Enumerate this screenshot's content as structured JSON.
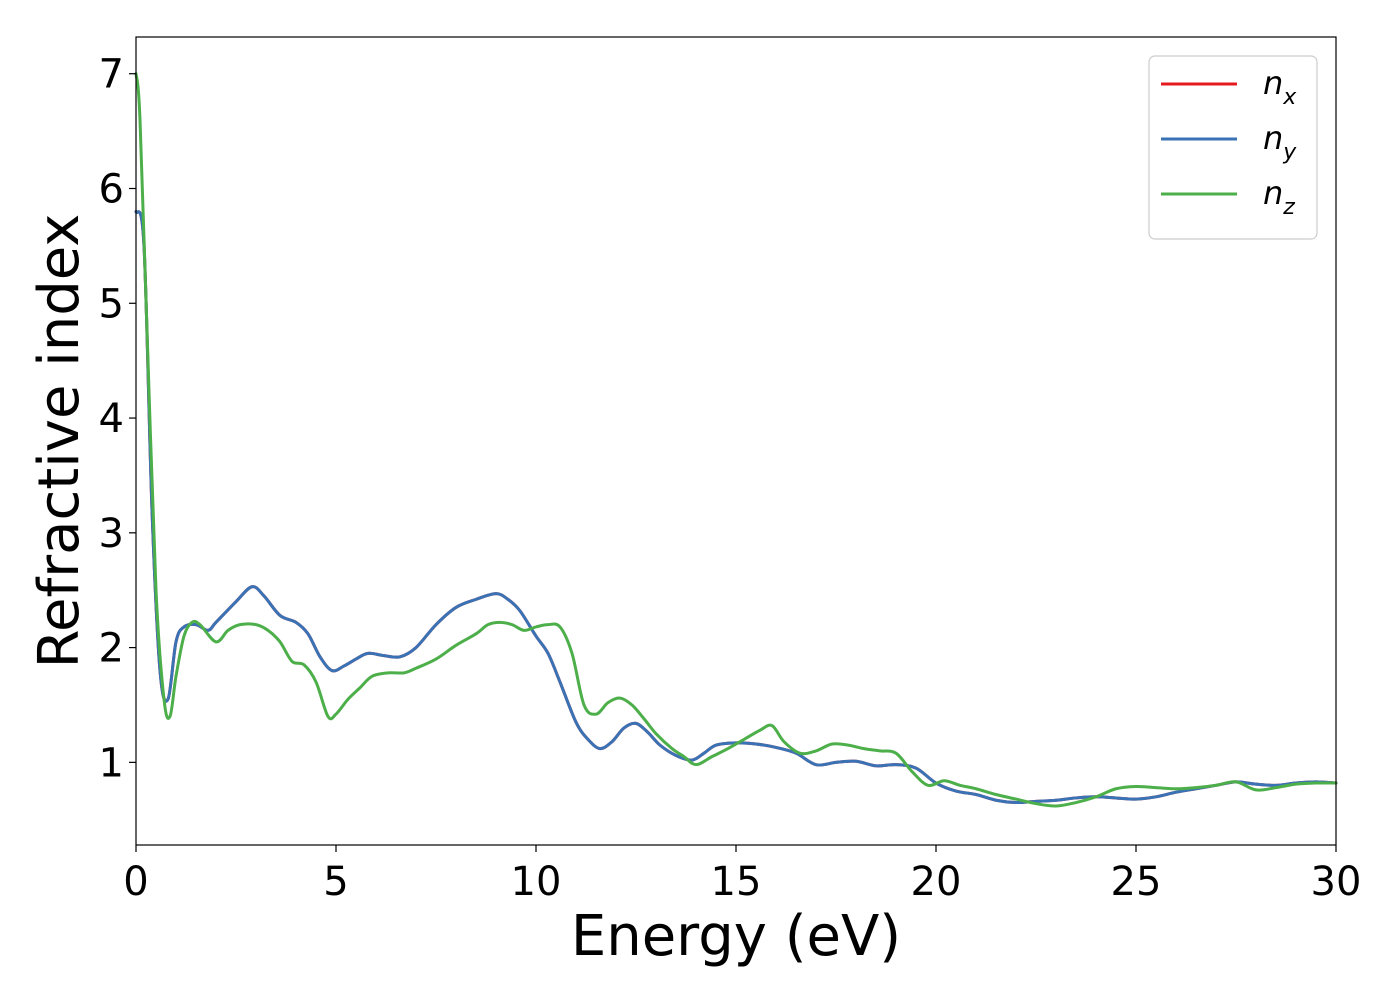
{
  "chart_data": {
    "type": "line",
    "title": "",
    "xlabel": "Energy (eV)",
    "ylabel": "Refractive index",
    "xlim": [
      0,
      30
    ],
    "ylim": [
      0.28,
      7.32
    ],
    "xticks": [
      0,
      5,
      10,
      15,
      20,
      25,
      30
    ],
    "xtick_labels": [
      "0",
      "5",
      "10",
      "15",
      "20",
      "25",
      "30"
    ],
    "yticks": [
      1,
      2,
      3,
      4,
      5,
      6,
      7
    ],
    "ytick_labels": [
      "1",
      "2",
      "3",
      "4",
      "5",
      "6",
      "7"
    ],
    "grid": false,
    "legend_position": "top-right",
    "series": [
      {
        "name": "n_x",
        "label_base": "n",
        "label_sub": "x",
        "color": "#e41a1c",
        "x": [
          0,
          0.2,
          0.4,
          0.6,
          0.8,
          1.0,
          1.2,
          1.5,
          1.8,
          2.0,
          2.5,
          2.9,
          3.2,
          3.6,
          4.0,
          4.3,
          4.6,
          4.9,
          5.2,
          5.5,
          5.8,
          6.2,
          6.6,
          7.0,
          7.5,
          8.0,
          8.5,
          9.0,
          9.3,
          9.6,
          10.0,
          10.3,
          10.6,
          11.0,
          11.3,
          11.6,
          11.9,
          12.2,
          12.5,
          12.8,
          13.1,
          13.5,
          13.9,
          14.2,
          14.5,
          15.0,
          15.5,
          16.0,
          16.5,
          17.0,
          17.5,
          18.0,
          18.5,
          19.0,
          19.5,
          20.0,
          20.5,
          21.0,
          21.5,
          22.0,
          22.5,
          23.0,
          23.5,
          24.0,
          24.5,
          25.0,
          25.5,
          26.0,
          26.5,
          27.0,
          27.5,
          28.0,
          28.5,
          29.0,
          29.5,
          30.0
        ],
        "y": [
          5.8,
          5.5,
          3.2,
          1.8,
          1.55,
          2.05,
          2.18,
          2.2,
          2.15,
          2.22,
          2.4,
          2.53,
          2.45,
          2.28,
          2.22,
          2.12,
          1.92,
          1.8,
          1.84,
          1.9,
          1.95,
          1.93,
          1.92,
          2.0,
          2.2,
          2.35,
          2.42,
          2.47,
          2.42,
          2.32,
          2.1,
          1.95,
          1.7,
          1.35,
          1.2,
          1.12,
          1.18,
          1.3,
          1.34,
          1.26,
          1.15,
          1.06,
          1.02,
          1.08,
          1.15,
          1.17,
          1.16,
          1.13,
          1.08,
          0.98,
          1.0,
          1.01,
          0.97,
          0.98,
          0.95,
          0.82,
          0.75,
          0.72,
          0.67,
          0.65,
          0.66,
          0.67,
          0.69,
          0.7,
          0.69,
          0.68,
          0.7,
          0.74,
          0.77,
          0.8,
          0.83,
          0.81,
          0.8,
          0.82,
          0.83,
          0.82
        ]
      },
      {
        "name": "n_y",
        "label_base": "n",
        "label_sub": "y",
        "color": "#3a73b5",
        "x": [
          0,
          0.2,
          0.4,
          0.6,
          0.8,
          1.0,
          1.2,
          1.5,
          1.8,
          2.0,
          2.5,
          2.9,
          3.2,
          3.6,
          4.0,
          4.3,
          4.6,
          4.9,
          5.2,
          5.5,
          5.8,
          6.2,
          6.6,
          7.0,
          7.5,
          8.0,
          8.5,
          9.0,
          9.3,
          9.6,
          10.0,
          10.3,
          10.6,
          11.0,
          11.3,
          11.6,
          11.9,
          12.2,
          12.5,
          12.8,
          13.1,
          13.5,
          13.9,
          14.2,
          14.5,
          15.0,
          15.5,
          16.0,
          16.5,
          17.0,
          17.5,
          18.0,
          18.5,
          19.0,
          19.5,
          20.0,
          20.5,
          21.0,
          21.5,
          22.0,
          22.5,
          23.0,
          23.5,
          24.0,
          24.5,
          25.0,
          25.5,
          26.0,
          26.5,
          27.0,
          27.5,
          28.0,
          28.5,
          29.0,
          29.5,
          30.0
        ],
        "y": [
          5.8,
          5.5,
          3.2,
          1.8,
          1.55,
          2.05,
          2.18,
          2.2,
          2.15,
          2.22,
          2.4,
          2.53,
          2.45,
          2.28,
          2.22,
          2.12,
          1.92,
          1.8,
          1.84,
          1.9,
          1.95,
          1.93,
          1.92,
          2.0,
          2.2,
          2.35,
          2.42,
          2.47,
          2.42,
          2.32,
          2.1,
          1.95,
          1.7,
          1.35,
          1.2,
          1.12,
          1.18,
          1.3,
          1.34,
          1.26,
          1.15,
          1.06,
          1.02,
          1.08,
          1.15,
          1.17,
          1.16,
          1.13,
          1.08,
          0.98,
          1.0,
          1.01,
          0.97,
          0.98,
          0.95,
          0.82,
          0.75,
          0.72,
          0.67,
          0.65,
          0.66,
          0.67,
          0.69,
          0.7,
          0.69,
          0.68,
          0.7,
          0.74,
          0.77,
          0.8,
          0.83,
          0.81,
          0.8,
          0.82,
          0.83,
          0.82
        ]
      },
      {
        "name": "n_z",
        "label_base": "n",
        "label_sub": "z",
        "color": "#4daf4a",
        "x": [
          0,
          0.1,
          0.3,
          0.5,
          0.7,
          0.85,
          1.0,
          1.2,
          1.4,
          1.6,
          2.0,
          2.3,
          2.6,
          3.0,
          3.3,
          3.6,
          3.9,
          4.2,
          4.5,
          4.8,
          5.0,
          5.3,
          5.6,
          5.9,
          6.3,
          6.7,
          7.0,
          7.5,
          8.0,
          8.5,
          8.8,
          9.1,
          9.4,
          9.7,
          10.0,
          10.3,
          10.6,
          10.9,
          11.2,
          11.5,
          11.8,
          12.1,
          12.4,
          12.7,
          13.0,
          13.4,
          13.7,
          14.0,
          14.4,
          14.8,
          15.2,
          15.6,
          15.9,
          16.2,
          16.6,
          17.0,
          17.4,
          17.8,
          18.2,
          18.6,
          19.0,
          19.4,
          19.8,
          20.2,
          20.6,
          21.0,
          21.5,
          22.0,
          22.5,
          23.0,
          23.5,
          24.0,
          24.5,
          25.0,
          25.5,
          26.0,
          26.5,
          27.0,
          27.5,
          28.0,
          28.5,
          29.0,
          29.5,
          30.0
        ],
        "y": [
          7.0,
          6.6,
          4.5,
          2.5,
          1.55,
          1.4,
          1.75,
          2.1,
          2.22,
          2.2,
          2.05,
          2.15,
          2.2,
          2.2,
          2.15,
          2.05,
          1.88,
          1.85,
          1.7,
          1.4,
          1.42,
          1.55,
          1.65,
          1.75,
          1.78,
          1.78,
          1.82,
          1.9,
          2.02,
          2.12,
          2.2,
          2.22,
          2.2,
          2.15,
          2.18,
          2.2,
          2.18,
          1.95,
          1.5,
          1.42,
          1.52,
          1.56,
          1.5,
          1.38,
          1.25,
          1.12,
          1.05,
          0.98,
          1.05,
          1.12,
          1.2,
          1.28,
          1.32,
          1.18,
          1.08,
          1.1,
          1.16,
          1.15,
          1.12,
          1.1,
          1.08,
          0.92,
          0.8,
          0.84,
          0.8,
          0.77,
          0.72,
          0.68,
          0.64,
          0.62,
          0.65,
          0.7,
          0.77,
          0.79,
          0.78,
          0.77,
          0.78,
          0.8,
          0.83,
          0.76,
          0.78,
          0.81,
          0.82,
          0.82
        ]
      }
    ]
  }
}
